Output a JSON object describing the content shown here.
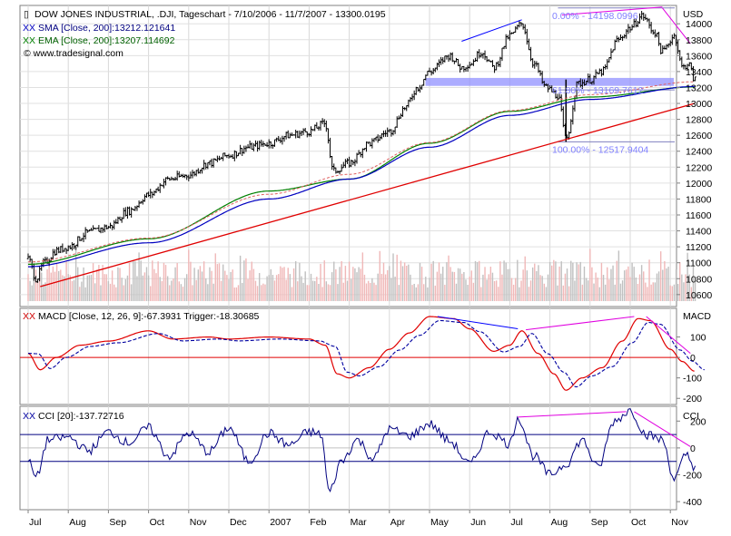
{
  "chart_data": {
    "type": "line",
    "instrument": "DOW JONES INDUSTRIAL, .DJI, Tageschart - 7/10/2006 - 11/7/2007 - 13300.0195",
    "currency_label": "USD",
    "watermark": "© www.tradesignal.com",
    "legend": {
      "sma": "SMA [Close, 200]:13212.121641",
      "ema": "EMA [Close, 200]:13207.114692"
    },
    "months": [
      "Jul",
      "Aug",
      "Sep",
      "Oct",
      "Nov",
      "Dec",
      "2007",
      "Feb",
      "Mar",
      "Apr",
      "May",
      "Jun",
      "Jul",
      "Aug",
      "Sep",
      "Oct",
      "Nov"
    ],
    "price_axis": {
      "ticks": [
        "10600",
        "10800",
        "11000",
        "11200",
        "11400",
        "11600",
        "11800",
        "12000",
        "12200",
        "12400",
        "12600",
        "12800",
        "13000",
        "13200",
        "13400",
        "13600",
        "13800",
        "14000"
      ],
      "range": [
        10450,
        14230
      ]
    },
    "price_anchors": [
      {
        "m": 0,
        "v": 11050
      },
      {
        "m": 0.2,
        "v": 10800
      },
      {
        "m": 0.4,
        "v": 11000
      },
      {
        "m": 0.7,
        "v": 11150
      },
      {
        "m": 1,
        "v": 11200
      },
      {
        "m": 1.5,
        "v": 11380
      },
      {
        "m": 2,
        "v": 11450
      },
      {
        "m": 2.5,
        "v": 11650
      },
      {
        "m": 3,
        "v": 11850
      },
      {
        "m": 3.5,
        "v": 12050
      },
      {
        "m": 4,
        "v": 12100
      },
      {
        "m": 4.5,
        "v": 12250
      },
      {
        "m": 5,
        "v": 12350
      },
      {
        "m": 5.5,
        "v": 12450
      },
      {
        "m": 6,
        "v": 12500
      },
      {
        "m": 6.5,
        "v": 12600
      },
      {
        "m": 7,
        "v": 12650
      },
      {
        "m": 7.4,
        "v": 12750
      },
      {
        "m": 7.6,
        "v": 12150
      },
      {
        "m": 8,
        "v": 12250
      },
      {
        "m": 8.5,
        "v": 12500
      },
      {
        "m": 9,
        "v": 12650
      },
      {
        "m": 9.4,
        "v": 12950
      },
      {
        "m": 9.7,
        "v": 13200
      },
      {
        "m": 10,
        "v": 13400
      },
      {
        "m": 10.5,
        "v": 13600
      },
      {
        "m": 10.8,
        "v": 13450
      },
      {
        "m": 11,
        "v": 13500
      },
      {
        "m": 11.3,
        "v": 13650
      },
      {
        "m": 11.6,
        "v": 13450
      },
      {
        "m": 12,
        "v": 13850
      },
      {
        "m": 12.3,
        "v": 14000
      },
      {
        "m": 12.6,
        "v": 13500
      },
      {
        "m": 12.9,
        "v": 13200
      },
      {
        "m": 13.2,
        "v": 13100
      },
      {
        "m": 13.4,
        "v": 12550
      },
      {
        "m": 13.7,
        "v": 13250
      },
      {
        "m": 14,
        "v": 13300
      },
      {
        "m": 14.3,
        "v": 13400
      },
      {
        "m": 14.7,
        "v": 13800
      },
      {
        "m": 15,
        "v": 13950
      },
      {
        "m": 15.3,
        "v": 14100
      },
      {
        "m": 15.6,
        "v": 13900
      },
      {
        "m": 15.8,
        "v": 13650
      },
      {
        "m": 16.1,
        "v": 13850
      },
      {
        "m": 16.3,
        "v": 13450
      },
      {
        "m": 16.45,
        "v": 13500
      },
      {
        "m": 16.6,
        "v": 13300
      }
    ],
    "sma_anchors": [
      {
        "m": 0,
        "v": 10950
      },
      {
        "m": 3,
        "v": 11250
      },
      {
        "m": 6,
        "v": 11800
      },
      {
        "m": 8,
        "v": 12050
      },
      {
        "m": 10,
        "v": 12450
      },
      {
        "m": 12,
        "v": 12850
      },
      {
        "m": 14,
        "v": 13050
      },
      {
        "m": 16.6,
        "v": 13212
      }
    ],
    "ema_anchors": [
      {
        "m": 0,
        "v": 10980
      },
      {
        "m": 3,
        "v": 11300
      },
      {
        "m": 6,
        "v": 11900
      },
      {
        "m": 8,
        "v": 12050
      },
      {
        "m": 10,
        "v": 12500
      },
      {
        "m": 12,
        "v": 12900
      },
      {
        "m": 14,
        "v": 13080
      },
      {
        "m": 16.6,
        "v": 13207
      }
    ],
    "trendline_support": [
      {
        "m": 0.3,
        "v": 10700
      },
      {
        "m": 16.6,
        "v": 13000
      }
    ],
    "fibonacci": {
      "high_label": "0.00% - 14198.0996",
      "mid_label": "61.80% - 13169.7612",
      "low_label": "100.00% - 12517.9404",
      "high": 14198.0996,
      "mid": 13169.7612,
      "low": 12517.9404
    },
    "support_zone": [
      13220,
      13320
    ],
    "macd": {
      "label": "MACD [Close, 12, 26, 9]:-67.3931 Trigger:-18.30685",
      "axis_label": "MACD",
      "ticks": [
        "100",
        "0",
        "-100",
        "-200"
      ],
      "range": [
        -230,
        240
      ],
      "anchors": [
        {
          "m": 0,
          "v": 20
        },
        {
          "m": 0.3,
          "v": -60
        },
        {
          "m": 0.7,
          "v": 0
        },
        {
          "m": 1.3,
          "v": 60
        },
        {
          "m": 2,
          "v": 80
        },
        {
          "m": 3,
          "v": 130
        },
        {
          "m": 3.6,
          "v": 90
        },
        {
          "m": 4.5,
          "v": 100
        },
        {
          "m": 5,
          "v": 90
        },
        {
          "m": 6,
          "v": 100
        },
        {
          "m": 7,
          "v": 90
        },
        {
          "m": 7.4,
          "v": 60
        },
        {
          "m": 7.7,
          "v": -80
        },
        {
          "m": 8.0,
          "v": -100
        },
        {
          "m": 8.5,
          "v": -50
        },
        {
          "m": 9,
          "v": 40
        },
        {
          "m": 9.5,
          "v": 120
        },
        {
          "m": 10,
          "v": 200
        },
        {
          "m": 10.6,
          "v": 190
        },
        {
          "m": 11,
          "v": 140
        },
        {
          "m": 11.6,
          "v": 30
        },
        {
          "m": 12,
          "v": 60
        },
        {
          "m": 12.3,
          "v": 130
        },
        {
          "m": 12.7,
          "v": 20
        },
        {
          "m": 13.1,
          "v": -80
        },
        {
          "m": 13.4,
          "v": -160
        },
        {
          "m": 13.8,
          "v": -100
        },
        {
          "m": 14.3,
          "v": -50
        },
        {
          "m": 14.8,
          "v": 80
        },
        {
          "m": 15.2,
          "v": 190
        },
        {
          "m": 15.5,
          "v": 180
        },
        {
          "m": 16,
          "v": 40
        },
        {
          "m": 16.3,
          "v": -20
        },
        {
          "m": 16.6,
          "v": -67
        }
      ]
    },
    "cci": {
      "label": "CCI [20]:-137.72716",
      "axis_label": "CCI",
      "ticks": [
        "200",
        "0",
        "-200",
        "-400"
      ],
      "range": [
        -460,
        310
      ],
      "anchors": [
        {
          "m": 0,
          "v": -100
        },
        {
          "m": 0.2,
          "v": -220
        },
        {
          "m": 0.5,
          "v": 60
        },
        {
          "m": 1,
          "v": 80
        },
        {
          "m": 1.5,
          "v": -20
        },
        {
          "m": 2,
          "v": 120
        },
        {
          "m": 2.5,
          "v": 40
        },
        {
          "m": 3,
          "v": 150
        },
        {
          "m": 3.5,
          "v": -60
        },
        {
          "m": 4,
          "v": 110
        },
        {
          "m": 4.5,
          "v": -30
        },
        {
          "m": 5,
          "v": 150
        },
        {
          "m": 5.5,
          "v": -100
        },
        {
          "m": 6,
          "v": 110
        },
        {
          "m": 6.5,
          "v": 20
        },
        {
          "m": 7,
          "v": 120
        },
        {
          "m": 7.3,
          "v": 100
        },
        {
          "m": 7.5,
          "v": -330
        },
        {
          "m": 7.8,
          "v": -100
        },
        {
          "m": 8.2,
          "v": 60
        },
        {
          "m": 8.6,
          "v": -80
        },
        {
          "m": 9,
          "v": 140
        },
        {
          "m": 9.5,
          "v": 90
        },
        {
          "m": 10,
          "v": 180
        },
        {
          "m": 10.5,
          "v": 50
        },
        {
          "m": 11,
          "v": -120
        },
        {
          "m": 11.5,
          "v": 120
        },
        {
          "m": 12,
          "v": 30
        },
        {
          "m": 12.2,
          "v": 230
        },
        {
          "m": 12.6,
          "v": -60
        },
        {
          "m": 13,
          "v": -200
        },
        {
          "m": 13.4,
          "v": -120
        },
        {
          "m": 13.8,
          "v": 60
        },
        {
          "m": 14.2,
          "v": -150
        },
        {
          "m": 14.6,
          "v": 200
        },
        {
          "m": 15,
          "v": 280
        },
        {
          "m": 15.4,
          "v": 100
        },
        {
          "m": 15.8,
          "v": 60
        },
        {
          "m": 16.1,
          "v": -230
        },
        {
          "m": 16.4,
          "v": -50
        },
        {
          "m": 16.6,
          "v": -138
        }
      ]
    },
    "volume_seed": 7
  }
}
